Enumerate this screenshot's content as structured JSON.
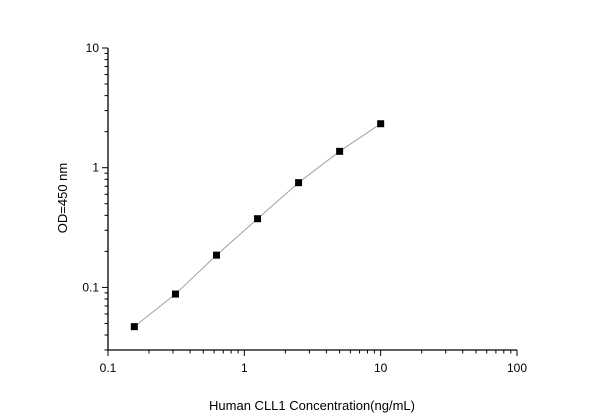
{
  "chart_data": {
    "type": "line",
    "title": "",
    "xlabel": "Human CLL1 Concentration(ng/mL)",
    "ylabel": "OD=450 nm",
    "xscale": "log",
    "yscale": "log",
    "xlim": [
      0.1,
      100
    ],
    "ylim": [
      0.03,
      10
    ],
    "xticks": [
      0.1,
      1,
      10,
      100
    ],
    "xtick_labels": [
      "0.1",
      "1",
      "10",
      "100"
    ],
    "yticks": [
      0.1,
      1,
      10
    ],
    "ytick_labels": [
      "0.1",
      "1",
      "10"
    ],
    "grid": false,
    "marker": "square",
    "marker_color": "#000000",
    "line_color": "#a0a0a0",
    "series": [
      {
        "x": [
          0.156,
          0.3125,
          0.625,
          1.25,
          2.5,
          5,
          10
        ],
        "y": [
          0.047,
          0.088,
          0.186,
          0.375,
          0.75,
          1.37,
          2.33
        ]
      }
    ]
  }
}
